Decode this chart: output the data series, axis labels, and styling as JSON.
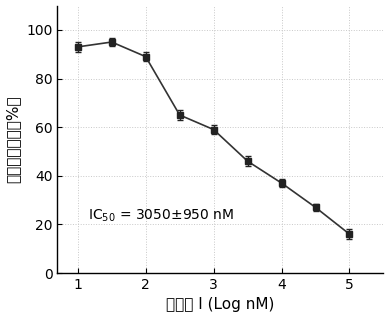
{
  "x": [
    1,
    1.5,
    2,
    2.5,
    3,
    3.5,
    4,
    4.5,
    5
  ],
  "y": [
    93,
    95,
    89,
    65,
    59,
    46,
    37,
    27,
    16
  ],
  "yerr": [
    2,
    1.5,
    2,
    2,
    2,
    2,
    1.5,
    1.5,
    2
  ],
  "xlabel": "化合物 I (Log nM)",
  "ylabel": "相对细胞活力（%）",
  "xlim": [
    0.7,
    5.5
  ],
  "ylim": [
    0,
    110
  ],
  "xticks": [
    1,
    2,
    3,
    4,
    5
  ],
  "yticks": [
    0,
    20,
    40,
    60,
    80,
    100
  ],
  "ic50_text_prefix": "IC",
  "ic50_text_body": " = 3050±950 nM",
  "ic50_x": 1.15,
  "ic50_y": 22,
  "line_color": "#333333",
  "marker": "s",
  "marker_color": "#222222",
  "marker_size": 5,
  "background_color": "#ffffff",
  "grid": true,
  "grid_color": "#c8c8c8",
  "grid_style": ":"
}
